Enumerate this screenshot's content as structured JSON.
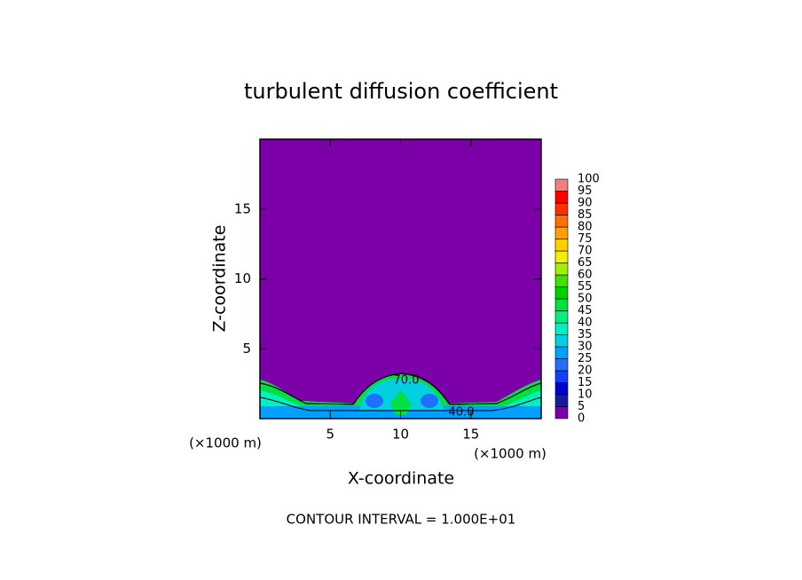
{
  "chart_data": {
    "type": "contour",
    "title": "turbulent diffusion coefficient",
    "x_label": "X-coordinate",
    "y_label": "Z-coordinate",
    "x_unit": "(×1000 m)",
    "y_unit": "(×1000 m)",
    "footer": "CONTOUR INTERVAL = 1.000E+01",
    "xlim": [
      0,
      20
    ],
    "xticks": [
      5,
      10,
      15
    ],
    "ylim": [
      0,
      20
    ],
    "yticks": [
      5,
      10,
      15
    ],
    "contour_labels": [
      "70.0",
      "40.0"
    ],
    "colorbar": {
      "levels": [
        0,
        5,
        10,
        15,
        20,
        25,
        30,
        35,
        40,
        45,
        50,
        55,
        60,
        65,
        70,
        75,
        80,
        85,
        90,
        95,
        100
      ],
      "colors": [
        "#7b00a8",
        "#1a1aa0",
        "#0000d0",
        "#1040ff",
        "#2070ff",
        "#00a0ff",
        "#00d0e0",
        "#00f0c0",
        "#00f080",
        "#00e040",
        "#00d000",
        "#40e000",
        "#a0f000",
        "#f0f000",
        "#ffd000",
        "#ffa000",
        "#ff7000",
        "#ff3000",
        "#ff0000",
        "#f08080"
      ]
    }
  }
}
